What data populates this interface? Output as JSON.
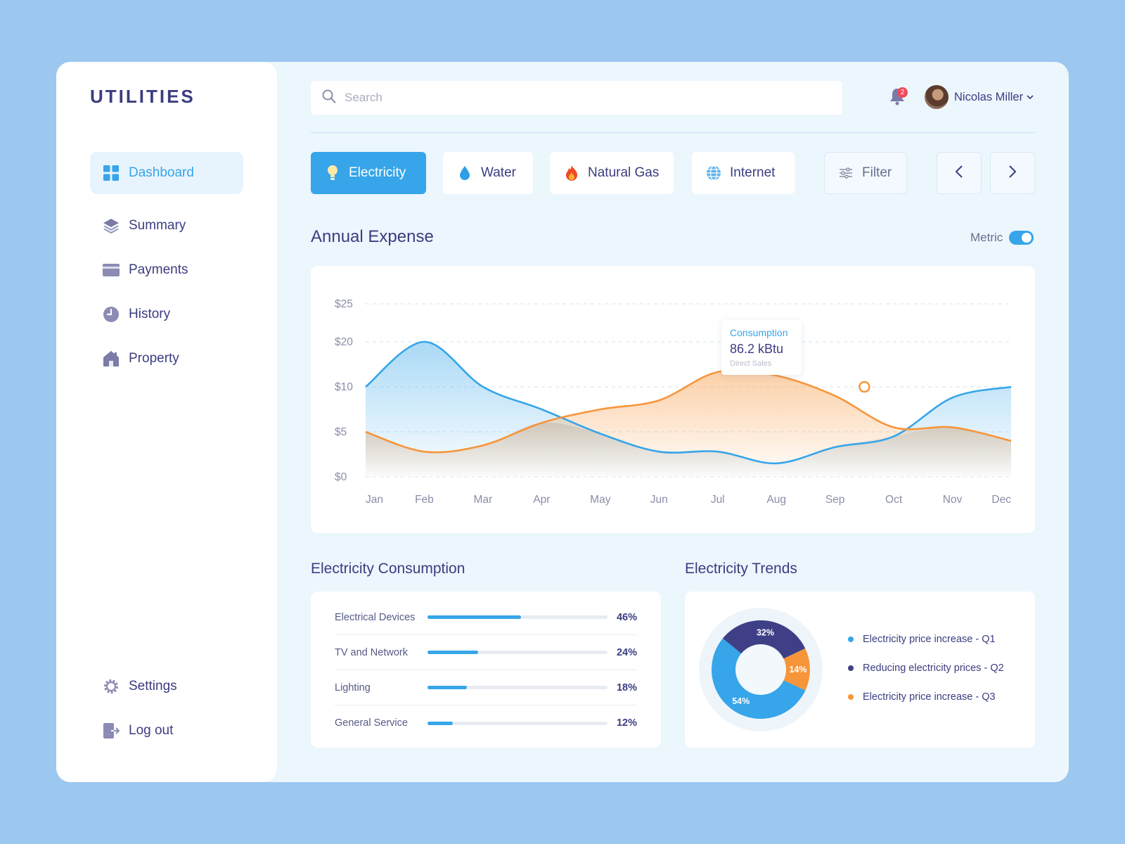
{
  "app": {
    "logo": "UTILITIES"
  },
  "sidebar": {
    "items": [
      {
        "label": "Dashboard",
        "icon": "dashboard-grid-icon",
        "active": true
      },
      {
        "label": "Summary",
        "icon": "layers-icon"
      },
      {
        "label": "Payments",
        "icon": "card-icon"
      },
      {
        "label": "History",
        "icon": "clock-icon"
      },
      {
        "label": "Property",
        "icon": "house-icon"
      }
    ],
    "bottom": [
      {
        "label": "Settings",
        "icon": "gear-icon"
      },
      {
        "label": "Log out",
        "icon": "logout-icon"
      }
    ]
  },
  "header": {
    "search_placeholder": "Search",
    "notifications": "2",
    "user_name": "Nicolas Miller"
  },
  "tabs": [
    {
      "label": "Electricity",
      "icon": "lightbulb-icon",
      "active": true
    },
    {
      "label": "Water",
      "icon": "water-drop-icon"
    },
    {
      "label": "Natural Gas",
      "icon": "flame-icon"
    },
    {
      "label": "Internet",
      "icon": "globe-icon"
    }
  ],
  "filter_label": "Filter",
  "annual": {
    "title": "Annual Expense",
    "metric_label": "Metric",
    "tooltip": {
      "title": "Consumption",
      "value": "86.2 kBtu",
      "sub": "Direct Sales"
    }
  },
  "chart_data": {
    "type": "area",
    "categories": [
      "Jan",
      "Feb",
      "Mar",
      "Apr",
      "May",
      "Jun",
      "Jul",
      "Aug",
      "Sep",
      "Oct",
      "Nov",
      "Dec"
    ],
    "y_ticks": [
      "$25",
      "$20",
      "$10",
      "$5",
      "$0"
    ],
    "series": [
      {
        "color": "#36a5e9",
        "values": [
          10,
          20,
          10,
          7.5,
          4.8,
          2.8,
          2.8,
          1.5,
          3.3,
          4.5,
          8.8,
          10
        ]
      },
      {
        "color": "#f7953a",
        "values": [
          5,
          2.8,
          3.5,
          6,
          7.5,
          8.5,
          13.3,
          12.5,
          9,
          5.5,
          5.5,
          4
        ]
      }
    ],
    "highlight": {
      "series": 1,
      "x": 8.5,
      "y": 10
    },
    "grid": "dashed"
  },
  "consumption": {
    "title": "Electricity Consumption",
    "rows": [
      {
        "label": "Electrical Devices",
        "pct": "46%",
        "value": 0.52
      },
      {
        "label": "TV and Network",
        "pct": "24%",
        "value": 0.28
      },
      {
        "label": "Lighting",
        "pct": "18%",
        "value": 0.22
      },
      {
        "label": "General Service",
        "pct": "12%",
        "value": 0.14
      }
    ]
  },
  "trends": {
    "title": "Electricity Trends",
    "slices": [
      {
        "label": "54%",
        "value": 54,
        "color": "#36a5e9"
      },
      {
        "label": "32%",
        "value": 32,
        "color": "#3f3f87"
      },
      {
        "label": "14%",
        "value": 14,
        "color": "#f7953a"
      }
    ],
    "legend": [
      {
        "label": "Electricity price increase - Q1",
        "color": "#36a5e9"
      },
      {
        "label": "Reducing electricity prices - Q2",
        "color": "#3f3f87"
      },
      {
        "label": "Electricity price increase - Q3",
        "color": "#f7953a"
      }
    ]
  }
}
